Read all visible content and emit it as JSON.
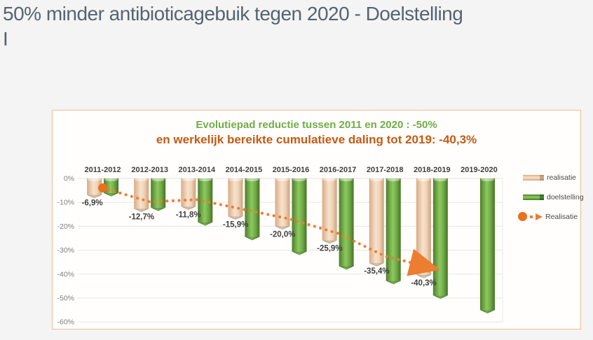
{
  "page": {
    "title": "50% minder antibioticagebuik tegen 2020 - Doelstelling I",
    "background": "#f4f4f5",
    "title_color": "#56646f"
  },
  "chart_data": {
    "type": "bar",
    "title": "Evolutiepad reductie tussen 2011 en 2020 : -50%",
    "subtitle": "en werkelijk bereikte cumulatieve daling tot 2019: -40,3%",
    "title_color": "#70ad47",
    "subtitle_color": "#c55a11",
    "categories": [
      "2011-2012",
      "2012-2013",
      "2013-2014",
      "2014-2015",
      "2015-2016",
      "2016-2017",
      "2017-2018",
      "2018-2019",
      "2019-2020"
    ],
    "unit": "%",
    "ylim": [
      -60,
      0
    ],
    "yticks": [
      "0%",
      "-10%",
      "-20%",
      "-30%",
      "-40%",
      "-50%",
      "-60%"
    ],
    "grid": true,
    "legend_position": "right",
    "series": [
      {
        "name": "realisatie",
        "type": "bar",
        "color": "#f2d8bd",
        "values": [
          -6.9,
          -12.7,
          -11.8,
          -15.9,
          -20.0,
          -25.9,
          -35.4,
          -40.3,
          null
        ],
        "data_labels": [
          "-6,9%",
          "-12,7%",
          "-11,8%",
          "-15,9%",
          "-20,0%",
          "-25,9%",
          "-35,4%",
          "-40,3%",
          ""
        ]
      },
      {
        "name": "doelstelling",
        "type": "bar",
        "color": "#71ad47",
        "values": [
          -6.1,
          -12.2,
          -18.3,
          -24.4,
          -30.6,
          -36.7,
          -42.8,
          -48.9,
          -55.0
        ]
      },
      {
        "name": "Realisatie",
        "type": "line",
        "color": "#ed7d31",
        "values": [
          -6.9,
          -12.7,
          -11.8,
          -15.9,
          -20.0,
          -25.9,
          -35.4,
          -40.3
        ]
      }
    ],
    "styles": {
      "grid_color": "#e9e9e9",
      "tick_color": "#7f7f7f",
      "label_color": "#3f3f3f",
      "category_color": "#3f3f3f",
      "panel_border": "#f1bd92",
      "panel_bg": "#fffefd",
      "line_start_dot": "#e8711c"
    }
  }
}
